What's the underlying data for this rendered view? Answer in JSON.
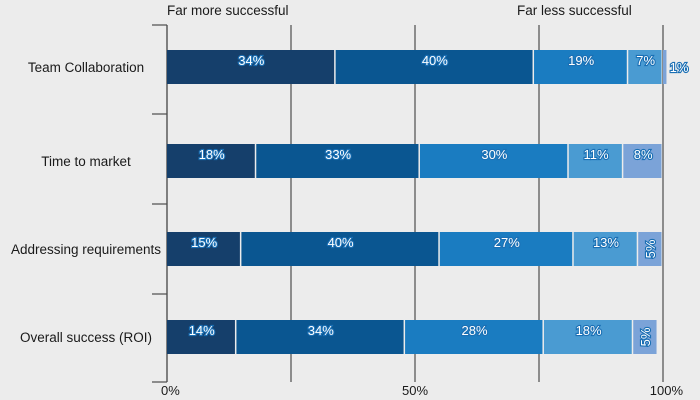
{
  "chart_data": {
    "type": "bar",
    "orientation": "horizontal",
    "stacked": true,
    "categories": [
      "Team Collaboration",
      "Time to market",
      "Addressing requirements",
      "Overall success (ROI)"
    ],
    "series": [
      {
        "values": [
          34,
          18,
          15,
          14
        ],
        "labels": [
          "34%",
          "18%",
          "15%",
          "14%"
        ]
      },
      {
        "values": [
          40,
          33,
          40,
          34
        ],
        "labels": [
          "40%",
          "33%",
          "40%",
          "34%"
        ]
      },
      {
        "values": [
          19,
          30,
          27,
          28
        ],
        "labels": [
          "19%",
          "30%",
          "27%",
          "28%"
        ]
      },
      {
        "values": [
          7,
          11,
          13,
          18
        ],
        "labels": [
          "7%",
          "11%",
          "13%",
          "18%"
        ]
      },
      {
        "values": [
          1,
          8,
          5,
          5
        ],
        "labels": [
          "1%",
          "8%",
          "5%",
          "5%"
        ]
      }
    ],
    "colors": [
      "#153f6b",
      "#0a5691",
      "#1a7cc1",
      "#4a9bd2",
      "#7ba3d8"
    ],
    "x_ticks": [
      "0%",
      "50%",
      "100%"
    ],
    "xlim": [
      0,
      100
    ],
    "top_labels": {
      "left": "Far more successful",
      "right": "Far less successful"
    },
    "grid": true
  }
}
